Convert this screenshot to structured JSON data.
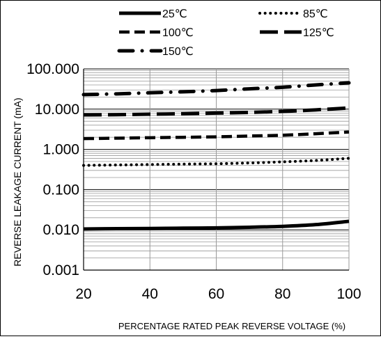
{
  "chart_data": {
    "type": "line",
    "title": "",
    "xlabel": "PERCENTAGE RATED PEAK REVERSE VOLTAGE (%)",
    "ylabel": "REVERSE LEAKAGE CURRENT (mA)",
    "xlim": [
      20,
      100
    ],
    "ylim": [
      0.001,
      100
    ],
    "yscale": "log",
    "grid": true,
    "legend": "top",
    "x_ticks": [
      "20",
      "40",
      "60",
      "80",
      "100"
    ],
    "y_ticks": [
      "0.001",
      "0.010",
      "0.100",
      "1.000",
      "10.000",
      "100.000"
    ],
    "x": [
      20,
      30,
      40,
      50,
      60,
      70,
      80,
      90,
      100
    ],
    "series": [
      {
        "name": "25℃",
        "values": [
          0.0105,
          0.0107,
          0.0108,
          0.011,
          0.0112,
          0.0116,
          0.0122,
          0.0135,
          0.0163
        ]
      },
      {
        "name": "85℃",
        "values": [
          0.4,
          0.41,
          0.42,
          0.43,
          0.44,
          0.46,
          0.49,
          0.53,
          0.6
        ]
      },
      {
        "name": "100℃",
        "values": [
          1.85,
          1.9,
          1.95,
          2.0,
          2.05,
          2.15,
          2.25,
          2.45,
          2.7
        ]
      },
      {
        "name": "125℃",
        "values": [
          7.2,
          7.3,
          7.5,
          7.7,
          8.0,
          8.3,
          8.8,
          9.6,
          10.7
        ]
      },
      {
        "name": "150℃",
        "values": [
          23,
          24,
          25.5,
          27,
          29,
          32,
          35,
          40,
          45
        ]
      }
    ]
  }
}
